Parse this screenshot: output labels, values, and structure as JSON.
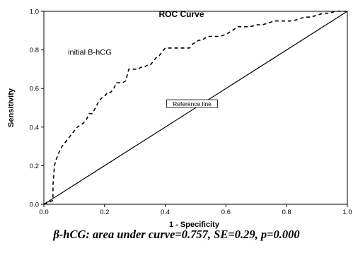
{
  "chart_data": {
    "type": "line",
    "title": "ROC Curve",
    "xlabel": "1 - Specificity",
    "ylabel": "Sensitivity",
    "xlim": [
      0,
      1
    ],
    "ylim": [
      0,
      1
    ],
    "xticks": [
      "0.0",
      "0.2",
      "0.4",
      "0.6",
      "0.8",
      "1.0"
    ],
    "yticks": [
      "0.0",
      "0.2",
      "0.4",
      "0.6",
      "0.8",
      "1.0"
    ],
    "grid": false,
    "series": [
      {
        "name": "initial B-hCG",
        "style": "dashed",
        "color": "#000000",
        "x": [
          0.0,
          0.03,
          0.03,
          0.035,
          0.04,
          0.05,
          0.06,
          0.07,
          0.08,
          0.09,
          0.1,
          0.11,
          0.12,
          0.13,
          0.14,
          0.15,
          0.16,
          0.17,
          0.18,
          0.19,
          0.2,
          0.21,
          0.22,
          0.23,
          0.24,
          0.25,
          0.26,
          0.27,
          0.28,
          0.29,
          0.3,
          0.31,
          0.32,
          0.33,
          0.34,
          0.35,
          0.36,
          0.37,
          0.38,
          0.39,
          0.4,
          0.41,
          0.42,
          0.43,
          0.44,
          0.45,
          0.46,
          0.47,
          0.48,
          0.49,
          0.5,
          0.51,
          0.52,
          0.53,
          0.54,
          0.56,
          0.58,
          0.6,
          0.62,
          0.64,
          0.66,
          0.68,
          0.7,
          0.72,
          0.74,
          0.76,
          0.78,
          0.8,
          0.82,
          0.84,
          0.86,
          0.88,
          0.9,
          0.92,
          0.94,
          0.96,
          1.0
        ],
        "y": [
          0.0,
          0.02,
          0.1,
          0.2,
          0.23,
          0.27,
          0.3,
          0.32,
          0.34,
          0.36,
          0.38,
          0.4,
          0.41,
          0.42,
          0.44,
          0.47,
          0.47,
          0.5,
          0.53,
          0.55,
          0.56,
          0.58,
          0.58,
          0.6,
          0.63,
          0.63,
          0.63,
          0.64,
          0.7,
          0.7,
          0.7,
          0.7,
          0.71,
          0.71,
          0.72,
          0.72,
          0.74,
          0.76,
          0.77,
          0.79,
          0.81,
          0.81,
          0.81,
          0.81,
          0.81,
          0.81,
          0.81,
          0.81,
          0.81,
          0.83,
          0.84,
          0.85,
          0.85,
          0.86,
          0.87,
          0.87,
          0.87,
          0.88,
          0.9,
          0.92,
          0.92,
          0.92,
          0.93,
          0.93,
          0.94,
          0.95,
          0.95,
          0.95,
          0.95,
          0.96,
          0.97,
          0.97,
          0.98,
          0.99,
          0.99,
          1.0,
          1.0
        ]
      },
      {
        "name": "Reference line",
        "style": "solid",
        "color": "#000000",
        "x": [
          0,
          1
        ],
        "y": [
          0,
          1
        ]
      }
    ],
    "annotations": [
      {
        "text": "initial B-hCG",
        "x": 0.17,
        "y": 0.79
      },
      {
        "text": "Reference line",
        "x": 0.5,
        "y": 0.52
      }
    ]
  },
  "caption": "β-hCG: area under curve=0.757, SE=0.29, p=0.000"
}
